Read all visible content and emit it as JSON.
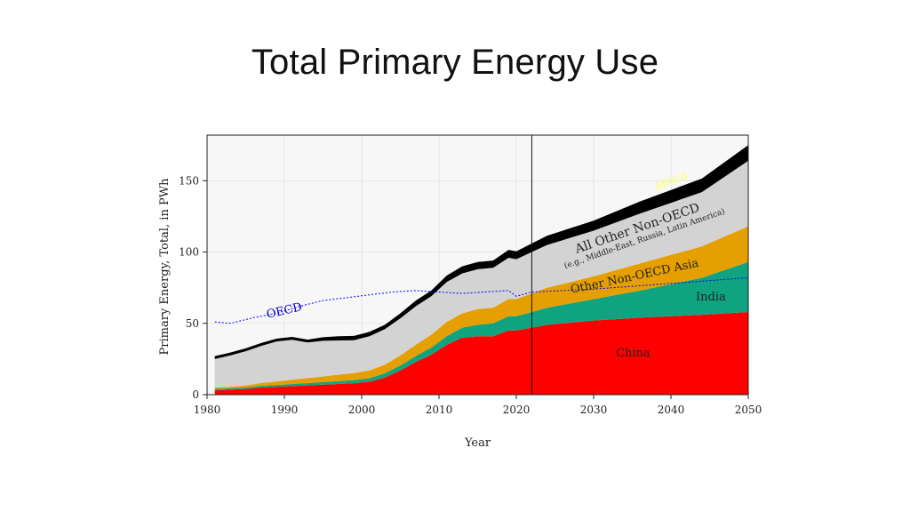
{
  "slide": {
    "title": "Total Primary Energy Use"
  },
  "chart_data": {
    "type": "area",
    "xlabel": "Year",
    "ylabel": "Primary Energy, Total, in PWh",
    "xlim": [
      1980,
      2050
    ],
    "ylim": [
      0,
      182
    ],
    "xticks": [
      1980,
      1990,
      2000,
      2010,
      2020,
      2030,
      2040,
      2050
    ],
    "yticks": [
      0,
      50,
      100,
      150
    ],
    "projection_start_year": 2022,
    "x": [
      1981,
      1983,
      1985,
      1987,
      1989,
      1991,
      1993,
      1995,
      1997,
      1999,
      2001,
      2003,
      2005,
      2007,
      2009,
      2011,
      2013,
      2015,
      2017,
      2019,
      2020,
      2022,
      2024,
      2030,
      2036,
      2044,
      2050
    ],
    "series": [
      {
        "name": "China",
        "color": "#ff0000",
        "values": [
          3,
          3.5,
          4,
          5,
          5.5,
          6,
          6.5,
          7,
          7.5,
          8,
          9,
          12,
          17,
          23,
          28,
          35,
          40,
          41,
          41,
          45,
          45,
          47,
          49,
          52,
          54,
          56,
          58
        ]
      },
      {
        "name": "India",
        "color": "#10a37f",
        "values": [
          1,
          1,
          1,
          1.2,
          1.3,
          1.5,
          1.6,
          1.8,
          2,
          2.2,
          2.5,
          3,
          3.5,
          4,
          5,
          6,
          7,
          8,
          9,
          10,
          10,
          11,
          12,
          15,
          19,
          26,
          35
        ]
      },
      {
        "name": "Other Non-OECD Asia",
        "color": "#e69f00",
        "values": [
          1,
          1,
          1.5,
          2,
          2.5,
          3,
          3.5,
          4,
          4.5,
          5,
          5.5,
          6,
          7,
          8,
          9,
          10,
          10,
          11,
          11,
          12,
          12,
          13,
          14,
          16,
          19,
          22,
          25
        ]
      },
      {
        "name": "All Other Non-OECD",
        "sublabel": "(e.g., Middle-East, Russia, Latin America)",
        "color": "#d3d3d3",
        "values": [
          20,
          22,
          24,
          26,
          28,
          28,
          25,
          25,
          24,
          23,
          24,
          25,
          26,
          27,
          27,
          28,
          28,
          28,
          28,
          29,
          28,
          29,
          30,
          32,
          35,
          38,
          46
        ]
      },
      {
        "name": "Africa",
        "color": "#000000",
        "values": [
          2,
          2,
          2,
          2,
          2,
          2,
          2,
          2.5,
          3,
          3,
          3,
          3,
          3.5,
          4,
          4,
          4.5,
          5,
          5,
          5,
          5.5,
          5.5,
          6,
          6.5,
          7,
          8.5,
          9.5,
          11
        ]
      }
    ],
    "oecd_line": {
      "name": "OECD",
      "color": "#0000ff",
      "x": [
        1981,
        1983,
        1986,
        1989,
        1992,
        1995,
        1998,
        2001,
        2004,
        2007,
        2010,
        2013,
        2016,
        2019,
        2020,
        2022,
        2030,
        2040,
        2050
      ],
      "values": [
        51,
        50,
        54,
        57,
        62,
        66,
        68,
        70,
        72,
        73,
        72,
        71,
        72,
        73,
        69,
        72,
        74,
        78,
        82
      ]
    },
    "annotations": {
      "africa": "Africa",
      "all_other": "All Other Non-OECD",
      "all_other_sub": "(e.g., Middle-East, Russia, Latin America)",
      "other_asia": "Other Non-OECD Asia",
      "india": "India",
      "china": "China",
      "oecd": "OECD"
    },
    "colors": {
      "africa_label": "#ffff66",
      "oecd_label": "#0000cc",
      "text": "#222222"
    }
  }
}
